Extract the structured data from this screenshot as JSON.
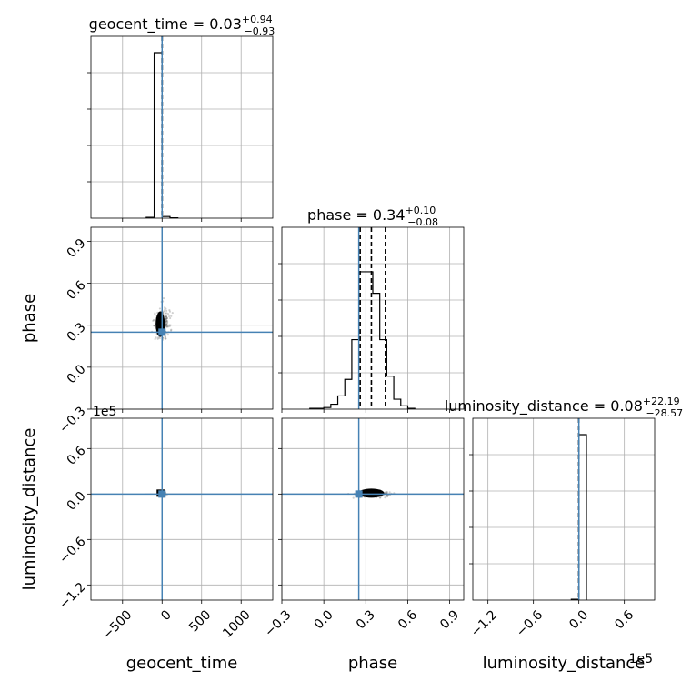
{
  "chart_data": {
    "type": "corner",
    "parameters": [
      "geocent_time",
      "phase",
      "luminosity_distance"
    ],
    "truth": {
      "geocent_time": 0,
      "phase": 0.25,
      "luminosity_distance": 0
    },
    "panels": {
      "geocent_time_hist": {
        "type": "histogram",
        "title_name": "geocent_time",
        "title_value": "0.03",
        "title_plus": "+0.94",
        "title_minus": "−0.93",
        "xlim": [
          -900,
          1400
        ],
        "bins": [
          [
            -200,
            -100,
            0.005
          ],
          [
            -100,
            0,
            1.0
          ],
          [
            0,
            100,
            0.01
          ],
          [
            100,
            200,
            0.002
          ]
        ],
        "quantiles": [
          -0.9,
          0.03,
          0.97
        ],
        "grid": true
      },
      "phase_hist": {
        "type": "histogram",
        "title_name": "phase",
        "title_value": "0.34",
        "title_plus": "+0.10",
        "title_minus": "−0.08",
        "xlim": [
          -0.3,
          1.0
        ],
        "bins": [
          [
            -0.1,
            0.0,
            0.005
          ],
          [
            0.0,
            0.05,
            0.01
          ],
          [
            0.05,
            0.1,
            0.03
          ],
          [
            0.1,
            0.15,
            0.08
          ],
          [
            0.15,
            0.2,
            0.18
          ],
          [
            0.2,
            0.25,
            0.42
          ],
          [
            0.25,
            0.3,
            0.83
          ],
          [
            0.3,
            0.35,
            0.83
          ],
          [
            0.35,
            0.4,
            0.7
          ],
          [
            0.4,
            0.45,
            0.42
          ],
          [
            0.45,
            0.5,
            0.2
          ],
          [
            0.5,
            0.55,
            0.06
          ],
          [
            0.55,
            0.6,
            0.02
          ],
          [
            0.6,
            0.65,
            0.005
          ]
        ],
        "quantiles": [
          0.26,
          0.34,
          0.44
        ],
        "grid": true
      },
      "luminosity_distance_hist": {
        "type": "histogram",
        "title_name": "luminosity_distance",
        "title_value": "0.08",
        "title_plus": "+22.19",
        "title_minus": "−28.57",
        "xlim": [
          -140000,
          100000
        ],
        "bins": [
          [
            -10000,
            0,
            0.005
          ],
          [
            0,
            10000,
            1.0
          ]
        ],
        "quantiles": [
          -28.49,
          0.08,
          22.27
        ],
        "grid": true
      },
      "phase_vs_geocent_time": {
        "type": "scatter",
        "xlim": [
          -900,
          1400
        ],
        "ylim": [
          -0.3,
          1.0
        ],
        "core": {
          "x": 0,
          "y": 0.32
        }
      },
      "luminosity_distance_vs_geocent_time": {
        "type": "scatter",
        "xlim": [
          -900,
          1400
        ],
        "ylim": [
          -140000,
          100000
        ],
        "core": {
          "x": 0,
          "y": 0
        }
      },
      "luminosity_distance_vs_phase": {
        "type": "scatter",
        "xlim": [
          -0.3,
          1.0
        ],
        "ylim": [
          -140000,
          100000
        ],
        "core": {
          "x": 0.34,
          "y": 0
        }
      }
    },
    "axes": {
      "geocent_time": {
        "label": "geocent_time",
        "ticks": [
          -500,
          0,
          500,
          1000
        ],
        "tick_labels": [
          "−500",
          "0",
          "500",
          "1000"
        ]
      },
      "phase": {
        "label": "phase",
        "ticks": [
          -0.3,
          0.0,
          0.3,
          0.6,
          0.9
        ],
        "tick_labels": [
          "−0.3",
          "0.0",
          "0.3",
          "0.6",
          "0.9"
        ]
      },
      "luminosity_distance": {
        "label": "luminosity_distance",
        "ticks": [
          -120000,
          -60000,
          0,
          60000
        ],
        "tick_labels": [
          "−1.2",
          "−0.6",
          "0.0",
          "0.6"
        ],
        "offset": "1e5"
      }
    },
    "colors": {
      "truth": "#4682b4",
      "hist": "#000000",
      "grid": "#b0b0b0",
      "points": "#000000"
    }
  }
}
